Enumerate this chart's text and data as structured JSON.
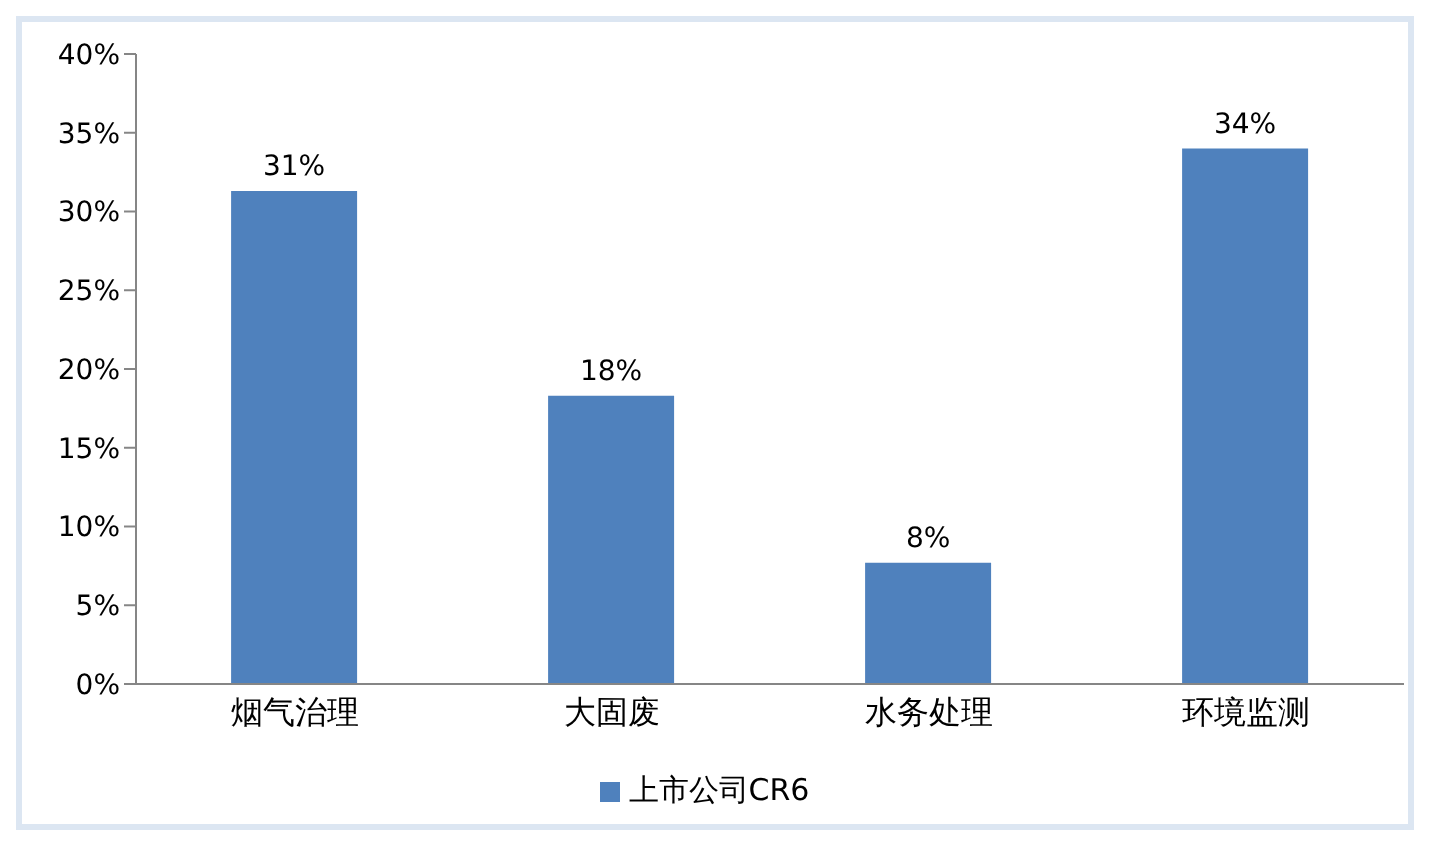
{
  "chart_data": {
    "type": "bar",
    "categories": [
      "烟气治理",
      "大固废",
      "水务处理",
      "环境监测"
    ],
    "series": [
      {
        "name": "上市公司CR6",
        "color": "#4f81bd",
        "values": [
          31.3,
          18.3,
          7.7,
          34
        ],
        "value_labels": [
          "31%",
          "18%",
          "8%",
          "34%"
        ]
      }
    ],
    "ylim": [
      0,
      40
    ],
    "yticks": [
      {
        "value": 0,
        "label": "0%"
      },
      {
        "value": 5,
        "label": "5%"
      },
      {
        "value": 10,
        "label": "10%"
      },
      {
        "value": 15,
        "label": "15%"
      },
      {
        "value": 20,
        "label": "20%"
      },
      {
        "value": 25,
        "label": "25%"
      },
      {
        "value": 30,
        "label": "30%"
      },
      {
        "value": 35,
        "label": "35%"
      },
      {
        "value": 40,
        "label": "40%"
      }
    ],
    "grid": false,
    "legend": "bottom"
  }
}
